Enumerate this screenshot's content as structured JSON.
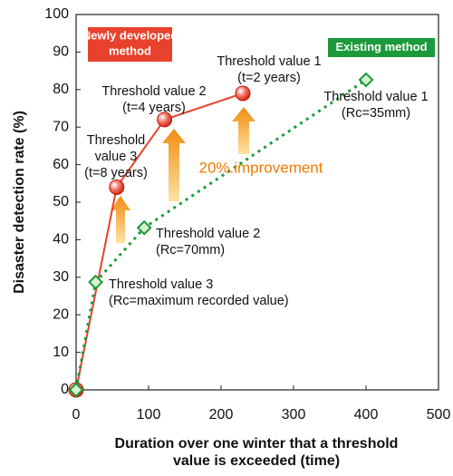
{
  "chart_data": {
    "type": "line",
    "x_label": [
      "Duration over one winter that a threshold",
      "value is exceeded (time)"
    ],
    "y_label": "Disaster detection rate (%)",
    "xlim": [
      0,
      500
    ],
    "xticks": [
      0,
      100,
      200,
      300,
      400,
      500
    ],
    "ylim": [
      0,
      100
    ],
    "yticks": [
      0,
      10,
      20,
      30,
      40,
      50,
      60,
      70,
      80,
      90,
      100
    ],
    "series": [
      {
        "name": [
          "Newly developed",
          "method"
        ],
        "color": "#e8412c",
        "x": [
          0,
          56,
          122,
          230
        ],
        "values": [
          0,
          54,
          72,
          79
        ]
      },
      {
        "name": [
          "Existing method"
        ],
        "color": "#1a9a3a",
        "x": [
          0,
          27,
          94,
          400
        ],
        "values": [
          0,
          28.7,
          43.2,
          82.6
        ]
      }
    ],
    "annotations": [
      [
        "Threshold value 1",
        "(t=2 years)"
      ],
      [
        "Threshold value 2",
        "(t=4 years)"
      ],
      [
        "Threshold",
        "value 3",
        "(t=8 years)"
      ],
      [
        "Threshold value 1",
        "(Rc=35mm)"
      ],
      [
        "Threshold value 2",
        "(Rc=70mm)"
      ],
      [
        "Threshold value 3",
        "(Rc=maximum recorded value)"
      ]
    ],
    "improvement": "20%.improvement"
  }
}
